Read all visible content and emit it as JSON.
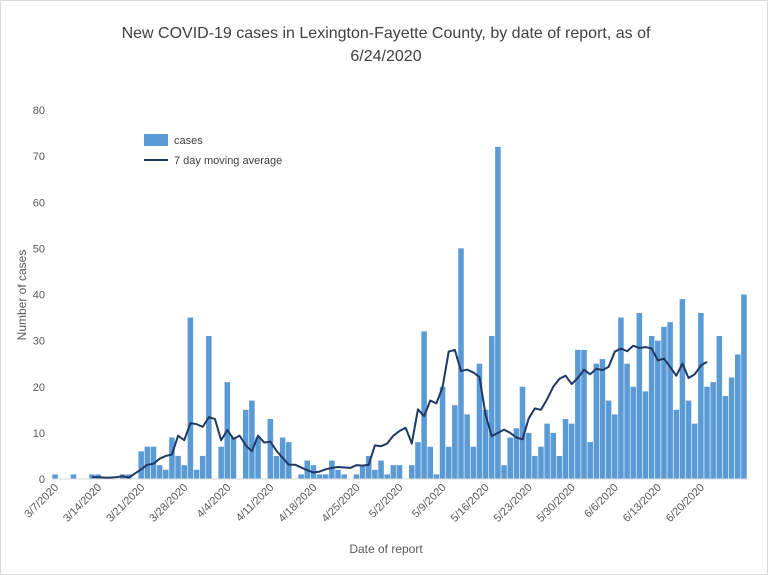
{
  "chart_data": {
    "type": "bar",
    "title_lines": [
      "New COVID-19 cases in Lexington-Fayette County, by date of report, as of",
      "6/24/2020"
    ],
    "xlabel": "Date of report",
    "ylabel": "Number of cases",
    "ylim": [
      0,
      80
    ],
    "y_ticks": [
      "0",
      "10",
      "20",
      "30",
      "40",
      "50",
      "60",
      "70",
      "80"
    ],
    "grid": false,
    "legend_position": "top-left",
    "x_tick_labels": [
      {
        "index": 0,
        "label": "3/7/2020"
      },
      {
        "index": 7,
        "label": "3/14/2020"
      },
      {
        "index": 14,
        "label": "3/21/2020"
      },
      {
        "index": 21,
        "label": "3/28/2020"
      },
      {
        "index": 28,
        "label": "4/4/2020"
      },
      {
        "index": 35,
        "label": "4/11/2020"
      },
      {
        "index": 42,
        "label": "4/18/2020"
      },
      {
        "index": 49,
        "label": "4/25/2020"
      },
      {
        "index": 56,
        "label": "5/2/2020"
      },
      {
        "index": 63,
        "label": "5/9/2020"
      },
      {
        "index": 70,
        "label": "5/16/2020"
      },
      {
        "index": 77,
        "label": "5/23/2020"
      },
      {
        "index": 84,
        "label": "5/30/2020"
      },
      {
        "index": 91,
        "label": "6/6/2020"
      },
      {
        "index": 98,
        "label": "6/13/2020"
      },
      {
        "index": 105,
        "label": "6/20/2020"
      }
    ],
    "series": [
      {
        "name": "cases",
        "type": "bar",
        "color": "#5B9BD5",
        "values": [
          1,
          0,
          0,
          1,
          0,
          0,
          1,
          1,
          0,
          0,
          0,
          1,
          1,
          0,
          6,
          7,
          7,
          3,
          2,
          9,
          5,
          3,
          35,
          2,
          5,
          31,
          0,
          7,
          21,
          9,
          0,
          15,
          17,
          9,
          0,
          13,
          5,
          9,
          8,
          0,
          1,
          4,
          3,
          1,
          1,
          4,
          2,
          1,
          0,
          1,
          3,
          5,
          2,
          4,
          1,
          3,
          3,
          0,
          3,
          8,
          32,
          7,
          1,
          20,
          7,
          16,
          50,
          14,
          7,
          25,
          15,
          31,
          72,
          3,
          9,
          11,
          20,
          10,
          5,
          7,
          12,
          10,
          5,
          13,
          12,
          28,
          28,
          8,
          25,
          26,
          17,
          14,
          35,
          25,
          20,
          36,
          19,
          31,
          30,
          33,
          34,
          15,
          39,
          17,
          12,
          36,
          20,
          21,
          31,
          18,
          22,
          27,
          40
        ],
        "index_offset": 0
      },
      {
        "name": "7 day moving average",
        "type": "line",
        "color": "#1F3864",
        "index_offset": 6,
        "values": [
          0.4,
          0.4,
          0.3,
          0.3,
          0.4,
          0.6,
          0.3,
          1.2,
          2.1,
          3.1,
          3.3,
          4.4,
          5.0,
          5.3,
          9.4,
          8.4,
          12.1,
          11.9,
          11.3,
          13.4,
          13.0,
          8.4,
          10.6,
          8.7,
          9.4,
          7.3,
          6.0,
          9.4,
          7.9,
          8.1,
          6.1,
          4.6,
          3.1,
          3.1,
          2.5,
          1.9,
          1.4,
          1.6,
          2.1,
          2.4,
          2.6,
          2.5,
          2.4,
          3.0,
          2.9,
          3.1,
          7.3,
          7.1,
          7.7,
          9.4,
          10.4,
          11.1,
          7.7,
          15.1,
          13.6,
          17.0,
          16.4,
          19.9,
          27.6,
          28.0,
          23.4,
          23.7,
          23.1,
          22.1,
          13.9,
          9.3,
          10.0,
          10.7,
          10.0,
          9.0,
          8.6,
          13.1,
          15.3,
          15.0,
          17.3,
          20.0,
          21.7,
          22.4,
          20.6,
          21.9,
          23.7,
          22.7,
          23.9,
          23.6,
          24.3,
          27.6,
          28.3,
          27.7,
          28.9,
          28.4,
          28.6,
          28.3,
          25.7,
          26.1,
          24.3,
          22.4,
          25.0,
          21.9,
          22.7,
          24.6,
          25.4
        ]
      }
    ]
  }
}
